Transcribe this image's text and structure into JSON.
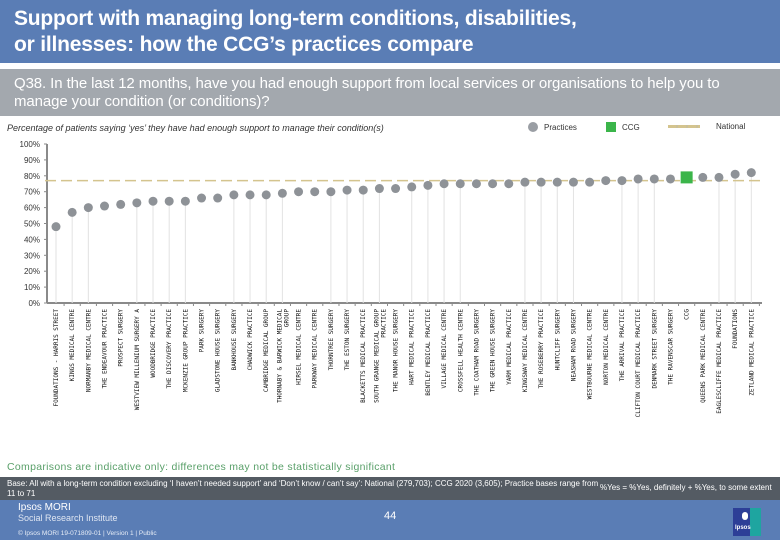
{
  "header": {
    "title_line1": "Support with managing long-term conditions, disabilities,",
    "title_line2": "or illnesses: how the CCG’s practices compare"
  },
  "question": {
    "text": "Q38. In the last 12 months, have you had enough support from local services or organisations to help you to manage your condition (or conditions)?"
  },
  "subtitle": "Percentage of patients saying ‘yes’ they have had enough support to manage their condition(s)",
  "legend": {
    "practices": "Practices",
    "ccg": "CCG",
    "national": "National"
  },
  "colors": {
    "practice_dot": "#8e9297",
    "ccg_marker": "#3bb54a",
    "national_line": "#d4c48e",
    "title_band": "#5a7db5",
    "question_band": "#a3a8ae",
    "note_text": "#5aa06a"
  },
  "chart_data": {
    "type": "scatter",
    "title": "Percentage of patients saying ‘yes’ they have had enough support to manage their condition(s)",
    "xlabel": "",
    "ylabel": "",
    "ylim": [
      0,
      100
    ],
    "yticks": [
      "0%",
      "10%",
      "20%",
      "30%",
      "40%",
      "50%",
      "60%",
      "70%",
      "80%",
      "90%",
      "100%"
    ],
    "grid": false,
    "legend_position": "top-right",
    "national_value": 77,
    "ccg_index": 39,
    "categories": [
      "FOUNDATIONS - HARRIS STREET",
      "KINGS MEDICAL CENTRE",
      "NORMANBY MEDICAL CENTRE",
      "THE ENDEAVOUR PRACTICE",
      "PROSPECT SURGERY",
      "WESTVIEW MILLENIUM SURGERY A",
      "WOODBRIDGE PRACTICE",
      "THE DISCOVERY PRACTICE",
      "MCKENZIE GROUP PRACTICE",
      "PARK SURGERY",
      "GLADSTONE HOUSE SURGERY",
      "BANKHOUSE SURGERY",
      "CHADWICK PRACTICE",
      "CAMBRIDGE MEDICAL GROUP",
      "THORNABY & BARWICK MEDICAL GROUP",
      "HIRSEL MEDICAL CENTRE",
      "PARKWAY MEDICAL CENTRE",
      "THORNTREE SURGERY",
      "THE ESTON SURGERY",
      "BLACKETTS MEDICAL PRACTICE",
      "SOUTH GRANGE MEDICAL GROUP PRACTICE",
      "THE MANOR HOUSE SURGERY",
      "HART MEDICAL PRACTICE",
      "BENTLEY MEDICAL PRACTICE",
      "VILLAGE MEDICAL CENTRE",
      "CROSSFELL HEALTH CENTRE",
      "THE COATHAM ROAD SURGERY",
      "THE GREEN HOUSE SURGERY",
      "YARM MEDICAL PRACTICE",
      "KINGSWAY MEDICAL CENTRE",
      "THE ROSEBERRY PRACTICE",
      "HUNTCLIFF SURGERY",
      "NEASHAM ROAD SURGERY",
      "WESTBOURNE MEDICAL CENTRE",
      "NORTON MEDICAL CENTRE",
      "THE ARRIVAL PRACTICE",
      "CLIFTON COURT MEDICAL PRACTICE",
      "DENMARK STREET SURGERY",
      "THE RAVENSCAR SURGERY",
      "CCG",
      "QUEENS PARK MEDICAL CENTRE",
      "EAGLESCLIFFE MEDICAL PRACTICE",
      "FOUNDATIONS",
      "ZETLAND MEDICAL PRACTICE"
    ],
    "series": [
      {
        "name": "Practices",
        "values": [
          48,
          57,
          60,
          61,
          62,
          63,
          64,
          64,
          64,
          66,
          66,
          68,
          68,
          68,
          69,
          70,
          70,
          70,
          71,
          71,
          72,
          72,
          73,
          74,
          75,
          75,
          75,
          75,
          75,
          76,
          76,
          76,
          76,
          76,
          77,
          77,
          78,
          78,
          78,
          79,
          79,
          79,
          81,
          82
        ]
      },
      {
        "name": "National",
        "value": 77
      }
    ],
    "drop_line_indices": [
      0,
      1,
      2,
      5,
      6,
      7,
      8,
      11,
      12,
      13,
      14,
      17,
      18,
      19,
      20,
      22,
      23,
      24,
      25,
      29,
      30,
      31,
      32,
      35,
      36,
      37,
      41,
      42,
      43
    ]
  },
  "note": "Comparisons are indicative only: differences may not be statistically significant",
  "base": {
    "text": "Base: All with a long-term condition excluding ‘I haven’t needed support’ and ‘Don’t know / can’t say’: National (279,703); CCG 2020 (3,605); Practice bases range from 11 to 71",
    "definition": "%Yes = %Yes, definitely + %Yes, to some extent"
  },
  "footer": {
    "brand": "Ipsos MORI",
    "brand_sub": "Social Research Institute",
    "meta": "© Ipsos MORI     19-071809-01 | Version 1 | Public",
    "page_number": "44",
    "logo_text": "Ipsos"
  }
}
